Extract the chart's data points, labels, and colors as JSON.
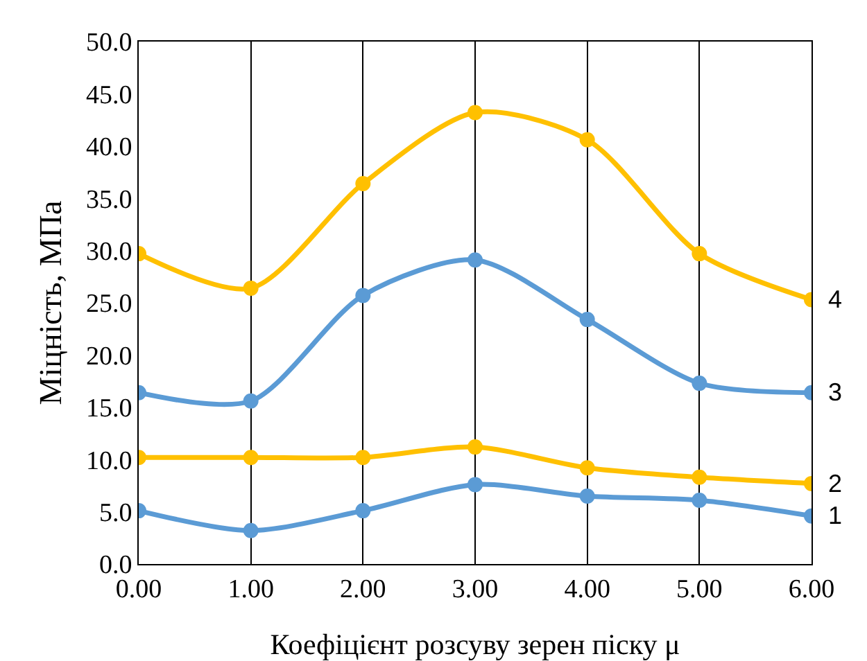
{
  "chart_data": {
    "type": "line",
    "xlabel": "Коефіцієнт розсуву зерен піску μ",
    "ylabel": "Міцність, МПа",
    "x": [
      0,
      1,
      2,
      3,
      4,
      5,
      6
    ],
    "series": [
      {
        "name": "1",
        "color": "#5b9bd5",
        "values": [
          5.1,
          3.2,
          5.1,
          7.6,
          6.5,
          6.1,
          4.6
        ]
      },
      {
        "name": "2",
        "color": "#ffc000",
        "values": [
          10.2,
          10.2,
          10.2,
          11.2,
          9.2,
          8.3,
          7.7
        ]
      },
      {
        "name": "3",
        "color": "#5b9bd5",
        "values": [
          16.4,
          15.6,
          25.7,
          29.1,
          23.4,
          17.3,
          16.4
        ]
      },
      {
        "name": "4",
        "color": "#ffc000",
        "values": [
          29.7,
          26.4,
          36.4,
          43.2,
          40.6,
          29.7,
          25.3
        ]
      }
    ],
    "xlim": [
      0,
      6
    ],
    "xticks": [
      {
        "value": 0,
        "label": "0.00"
      },
      {
        "value": 1,
        "label": "1.00"
      },
      {
        "value": 2,
        "label": "2.00"
      },
      {
        "value": 3,
        "label": "3.00"
      },
      {
        "value": 4,
        "label": "4.00"
      },
      {
        "value": 5,
        "label": "5.00"
      },
      {
        "value": 6,
        "label": "6.00"
      }
    ],
    "ylim": [
      0,
      50
    ],
    "yticks": [
      {
        "value": 0,
        "label": "0.0"
      },
      {
        "value": 5,
        "label": "5.0"
      },
      {
        "value": 10,
        "label": "10.0"
      },
      {
        "value": 15,
        "label": "15.0"
      },
      {
        "value": 20,
        "label": "20.0"
      },
      {
        "value": 25,
        "label": "25.0"
      },
      {
        "value": 30,
        "label": "30.0"
      },
      {
        "value": 35,
        "label": "35.0"
      },
      {
        "value": 40,
        "label": "40.0"
      },
      {
        "value": 45,
        "label": "45.0"
      },
      {
        "value": 50,
        "label": "50.0"
      }
    ],
    "grid": "x",
    "legend": false,
    "marker": "circle",
    "line_style": "solid"
  }
}
